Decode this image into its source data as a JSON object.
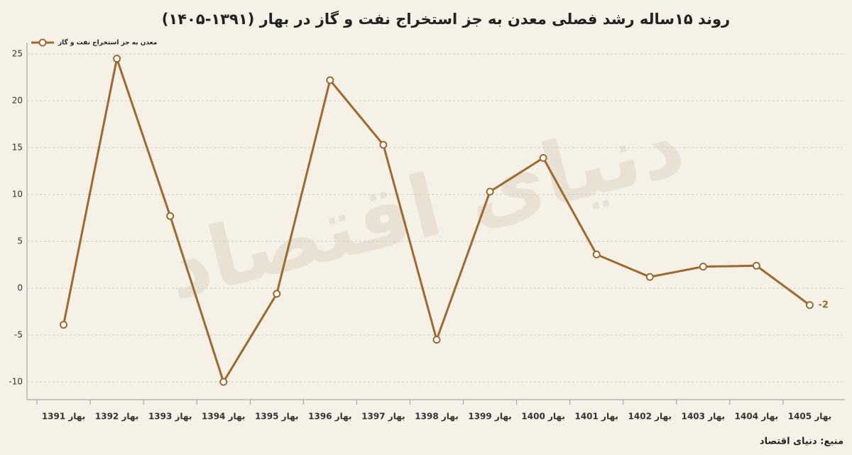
{
  "chart_data": {
    "type": "line",
    "title": "روند ۱۵ساله رشد فصلی معدن به جز استخراج نفت و گاز در بهار (۱۳۹۱-۱۴۰۵)",
    "source": "منبع: دنیای اقتصاد",
    "watermark": "دنیای اقتصاد",
    "categories": [
      "بهار 1391",
      "بهار 1392",
      "بهار 1393",
      "بهار 1394",
      "بهار 1395",
      "بهار 1396",
      "بهار 1397",
      "بهار 1398",
      "بهار 1399",
      "بهار 1400",
      "بهار 1401",
      "بهار 1402",
      "بهار 1403",
      "بهار 1404",
      "بهار 1405"
    ],
    "series": [
      {
        "name": "معدن به جز استخراج نفت و گاز",
        "color": "#9a6a2e",
        "values": [
          -3.9,
          24.5,
          7.7,
          -10,
          -0.6,
          22.2,
          15.3,
          -5.5,
          10.3,
          13.9,
          3.6,
          1.2,
          2.3,
          2.4,
          -1.8
        ],
        "value_labels": [
          null,
          null,
          null,
          null,
          null,
          null,
          null,
          null,
          null,
          null,
          null,
          null,
          null,
          null,
          "-2"
        ]
      }
    ],
    "ylim": [
      -12,
      26
    ],
    "yticks": [
      -10,
      -5,
      0,
      5,
      10,
      15,
      20,
      25
    ],
    "grid": true,
    "legend": "top-left"
  }
}
